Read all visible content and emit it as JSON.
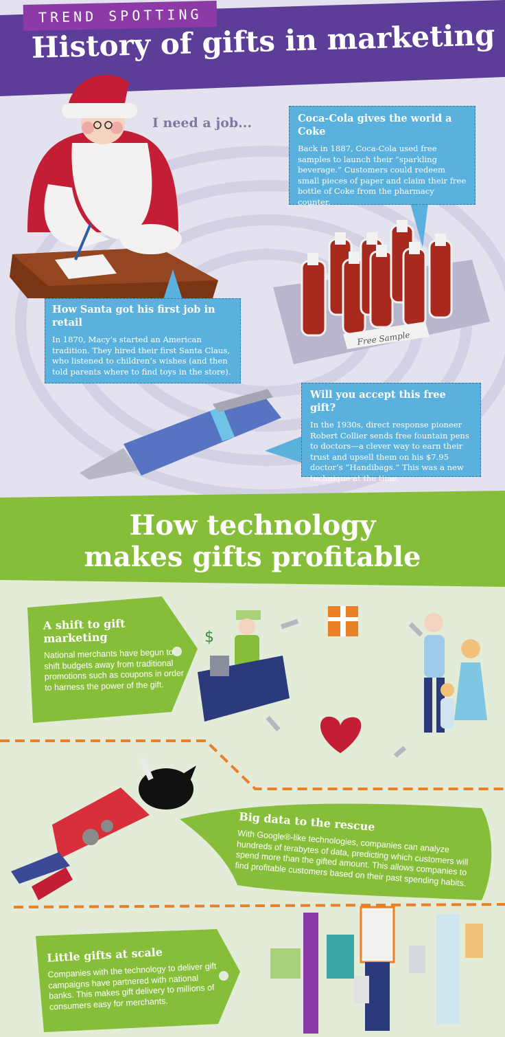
{
  "header": {
    "kicker": "TREND SPOTTING",
    "title": "History of gifts in marketing"
  },
  "thought": "I need a job...",
  "history": {
    "coke": {
      "title": "Coca-Cola gives the world a Coke",
      "body": "Back in 1887, Coca-Cola used free samples to launch their “sparkling beverage.” Customers could redeem small pieces of paper and claim their free bottle of Coke from the pharmacy counter."
    },
    "santa": {
      "title": "How Santa got his first job in retail",
      "body": "In 1870, Macy’s started an American tradition. They hired their first Santa Claus, who listened to children’s wishes (and then told parents where to find toys in the store)."
    },
    "pen": {
      "title": "Will you accept this free gift?",
      "body": "In the 1930s, direct response pioneer Robert Collier sends free fountain pens to doctors—a clever way to earn their trust and upsell them on his $7.95 doctor’s “Handibags.” This was a new technique at the time."
    },
    "sample_label": "Free Sample"
  },
  "banner": {
    "line1": "How technology",
    "line2": "makes gifts profitable"
  },
  "technology": {
    "shift": {
      "title": "A shift to gift marketing",
      "body": "National merchants have begun to shift budgets away from traditional promotions such as coupons in order to harness the power of the gift."
    },
    "bigdata": {
      "title": "Big data to the rescue",
      "body": "With Google®-like technologies, companies can analyze hundreds of terabytes of data, predicting which customers will spend more than the gifted amount. This allows companies to find profitable customers based on their past spending habits."
    },
    "little": {
      "title": "Little gifts at scale",
      "body": "Companies with the technology to deliver gift campaigns have partnered with national banks. This makes gift delivery to millions of consumers easy for merchants."
    }
  },
  "colors": {
    "purple": "#5c3d97",
    "magenta": "#8b3aa6",
    "lavender": "#e3e2ee",
    "blue": "#5ab1de",
    "green": "#86be3a",
    "orange": "#e97f26",
    "red": "#c41d36"
  }
}
